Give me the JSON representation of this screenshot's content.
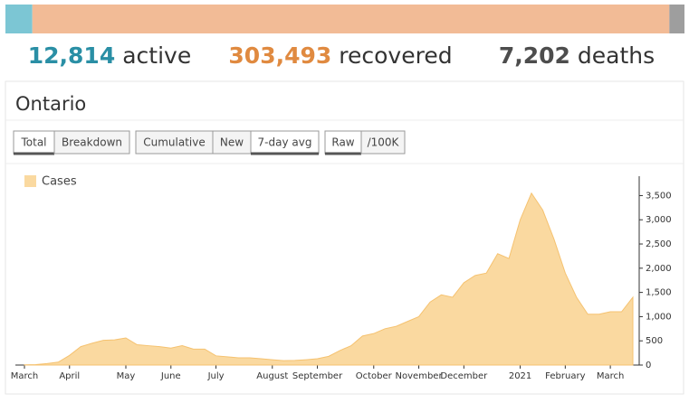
{
  "summary": {
    "values": [
      12814,
      303493,
      7202
    ],
    "value_labels": [
      "12,814",
      "303,493",
      "7,202"
    ],
    "labels": [
      "active",
      "recovered",
      "deaths"
    ],
    "bar_colors": [
      "#7cc6d4",
      "#f2bb96",
      "#9e9e9e"
    ],
    "text_colors": [
      "#2a8fa5",
      "#e08a40",
      "#4d4d4d"
    ]
  },
  "region": {
    "title": "Ontario"
  },
  "toggles": {
    "groups": [
      [
        "Total",
        "Breakdown"
      ],
      [
        "Cumulative",
        "New",
        "7-day avg"
      ],
      [
        "Raw",
        "/100K"
      ]
    ],
    "selected": [
      0,
      2,
      0
    ]
  },
  "chart_data": {
    "type": "area",
    "legend": "upper left",
    "categories": [
      "March",
      null,
      null,
      null,
      "April",
      null,
      null,
      null,
      null,
      "May",
      null,
      null,
      null,
      "June",
      null,
      null,
      null,
      "July",
      null,
      null,
      null,
      null,
      "August",
      null,
      null,
      null,
      "September",
      null,
      null,
      null,
      null,
      "October",
      null,
      null,
      null,
      "November",
      null,
      null,
      null,
      "December",
      null,
      null,
      null,
      null,
      "2021",
      null,
      null,
      null,
      "February",
      null,
      null,
      null,
      "March",
      null,
      null
    ],
    "series": [
      {
        "name": "Cases",
        "color": "#fad9a0",
        "values": [
          5,
          10,
          30,
          60,
          200,
          380,
          450,
          510,
          520,
          560,
          420,
          400,
          380,
          350,
          400,
          330,
          330,
          190,
          170,
          150,
          150,
          130,
          110,
          90,
          95,
          110,
          130,
          180,
          300,
          400,
          600,
          650,
          750,
          800,
          900,
          1000,
          1300,
          1450,
          1400,
          1700,
          1850,
          1900,
          2300,
          2200,
          3000,
          3550,
          3200,
          2600,
          1900,
          1400,
          1050,
          1050,
          1100,
          1100,
          1400
        ]
      }
    ],
    "ylim": [
      0,
      3900
    ],
    "yticks": [
      0,
      500,
      {
        "value": 1000,
        "label": "1,000"
      },
      {
        "value": 1500,
        "label": "1,500"
      },
      {
        "value": 2000,
        "label": "2,000"
      },
      {
        "value": 2500,
        "label": "2,500"
      },
      {
        "value": 3000,
        "label": "3,000"
      },
      {
        "value": 3500,
        "label": "3,500"
      }
    ]
  }
}
